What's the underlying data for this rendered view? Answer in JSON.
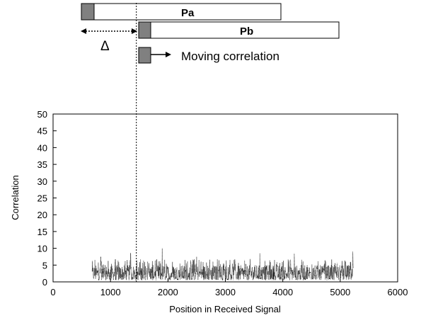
{
  "diagram": {
    "block_a_label": "Pa",
    "block_b_label": "Pb",
    "delta_label": "Δ",
    "moving_label": "Moving correlation",
    "block_fill": "#808080"
  },
  "chart_data": {
    "type": "line",
    "title": "",
    "xlabel": "Position in Received Signal",
    "ylabel": "Correlation",
    "xlim": [
      0,
      6000
    ],
    "ylim": [
      0,
      50
    ],
    "xticks": [
      0,
      1000,
      2000,
      3000,
      4000,
      5000,
      6000
    ],
    "yticks": [
      0,
      5,
      10,
      15,
      20,
      25,
      30,
      35,
      40,
      45,
      50
    ],
    "grid": false,
    "legend": "none",
    "marker_line_x": 1450,
    "series": [
      {
        "signal_range": [
          680,
          5230
        ],
        "typical_range": [
          0.5,
          5
        ],
        "peaks": [
          {
            "x": 830,
            "y": 7.5
          },
          {
            "x": 1350,
            "y": 8.5
          },
          {
            "x": 1900,
            "y": 10
          },
          {
            "x": 2500,
            "y": 7.5
          },
          {
            "x": 3600,
            "y": 8.5
          },
          {
            "x": 4200,
            "y": 8.5
          },
          {
            "x": 5220,
            "y": 9
          }
        ],
        "color": "#000000"
      }
    ]
  }
}
